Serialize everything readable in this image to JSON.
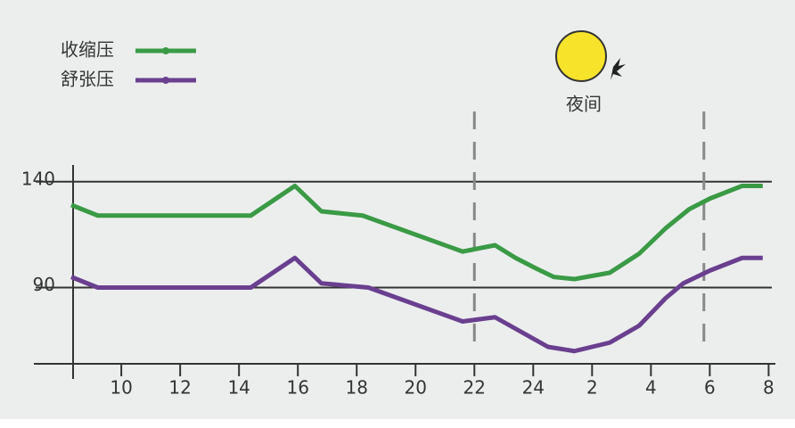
{
  "chart_data": {
    "type": "line",
    "annotation": "夜间",
    "series": [
      {
        "name": "收缩压",
        "color": "#3a9a45",
        "x": [
          8.3,
          9.2,
          14.4,
          15.9,
          16.8,
          18.2,
          21.6,
          22.7,
          23.4,
          24.1,
          24.7,
          25.4,
          26.6,
          27.6,
          28.5,
          29.3,
          30.0,
          31.1,
          31.8
        ],
        "values": [
          129,
          124,
          124,
          138,
          126,
          124,
          107,
          110,
          104,
          99,
          95,
          94,
          97,
          106,
          118,
          127,
          132,
          138,
          138
        ]
      },
      {
        "name": "舒张压",
        "color": "#6a3f8f",
        "x": [
          8.3,
          9.2,
          14.4,
          15.9,
          16.8,
          18.4,
          21.6,
          22.7,
          23.6,
          24.5,
          25.4,
          26.6,
          27.6,
          28.5,
          29.1,
          30.0,
          31.1,
          31.8
        ],
        "values": [
          95,
          90,
          90,
          104,
          92,
          90,
          74,
          76,
          69,
          62,
          60,
          64,
          72,
          85,
          92,
          98,
          104,
          104
        ]
      }
    ],
    "xlim": [
      8.3,
      32.2
    ],
    "xticks": [
      10,
      12,
      14,
      16,
      18,
      20,
      22,
      24,
      {
        "value": 26,
        "label": "2"
      },
      {
        "value": 28,
        "label": "4"
      },
      {
        "value": 30,
        "label": "6"
      },
      {
        "value": 32,
        "label": "8"
      }
    ],
    "ylim": [
      54,
      150
    ],
    "yticks": [
      90,
      140
    ],
    "night_range": [
      22,
      29.8
    ]
  }
}
